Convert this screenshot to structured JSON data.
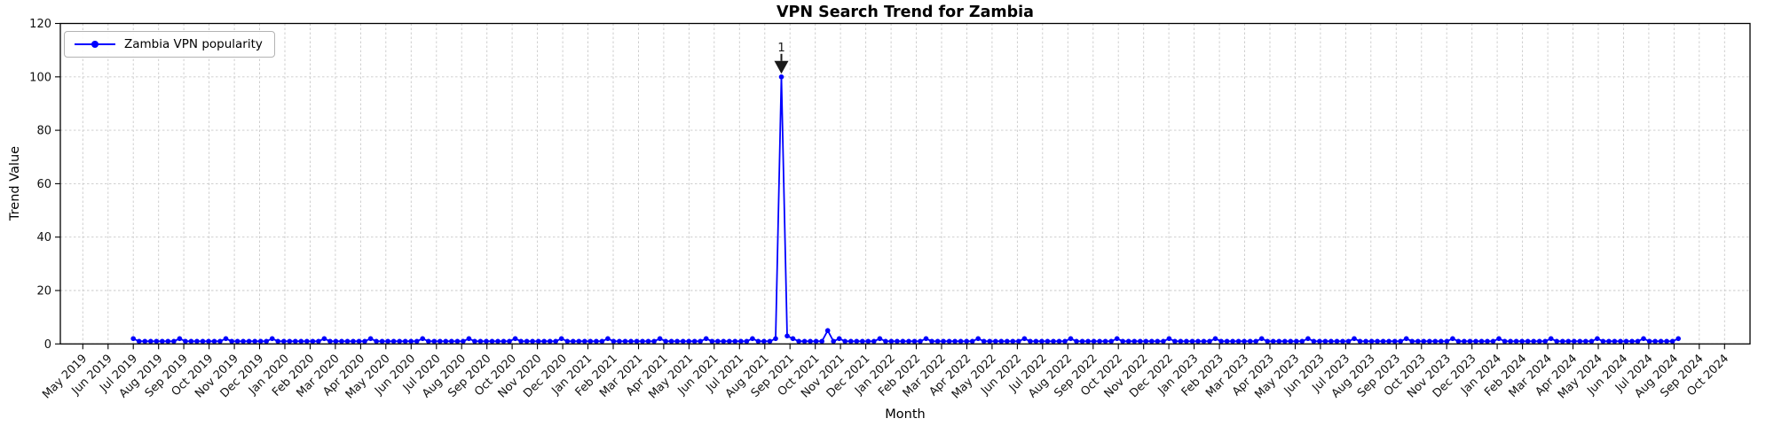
{
  "chart_data": {
    "type": "line",
    "title": "VPN Search Trend for Zambia",
    "xlabel": "Month",
    "ylabel": "Trend Value",
    "ylim": [
      0,
      120
    ],
    "yticks": [
      0,
      20,
      40,
      60,
      80,
      100,
      120
    ],
    "grid": "dashed",
    "legend_position": "upper left",
    "x_tick_labels": [
      "May 2019",
      "Jun 2019",
      "Jul 2019",
      "Aug 2019",
      "Sep 2019",
      "Oct 2019",
      "Nov 2019",
      "Dec 2019",
      "Jan 2020",
      "Feb 2020",
      "Mar 2020",
      "Apr 2020",
      "May 2020",
      "Jun 2020",
      "Jul 2020",
      "Aug 2020",
      "Sep 2020",
      "Oct 2020",
      "Nov 2020",
      "Dec 2020",
      "Jan 2021",
      "Feb 2021",
      "Mar 2021",
      "Apr 2021",
      "May 2021",
      "Jun 2021",
      "Jul 2021",
      "Aug 2021",
      "Sep 2021",
      "Oct 2021",
      "Nov 2021",
      "Dec 2021",
      "Jan 2022",
      "Feb 2022",
      "Mar 2022",
      "Apr 2022",
      "May 2022",
      "Jun 2022",
      "Jul 2022",
      "Aug 2022",
      "Sep 2022",
      "Oct 2022",
      "Nov 2022",
      "Dec 2022",
      "Jan 2023",
      "Feb 2023",
      "Mar 2023",
      "Apr 2023",
      "May 2023",
      "Jun 2023",
      "Jul 2023",
      "Aug 2023",
      "Sep 2023",
      "Oct 2023",
      "Nov 2023",
      "Dec 2023",
      "Jan 2024",
      "Feb 2024",
      "Mar 2024",
      "Apr 2024",
      "May 2024",
      "Jun 2024",
      "Jul 2024",
      "Aug 2024",
      "Sep 2024",
      "Oct 2024"
    ],
    "series": [
      {
        "name": "Zambia VPN popularity",
        "color": "#0000ff",
        "marker": "circle",
        "cadence": "weekly",
        "first_point_month_index": 2,
        "points_per_month": 4.365,
        "values": [
          2,
          1,
          1,
          1,
          1,
          1,
          1,
          1,
          2,
          1,
          1,
          1,
          1,
          1,
          1,
          1,
          2,
          1,
          1,
          1,
          1,
          1,
          1,
          1,
          2,
          1,
          1,
          1,
          1,
          1,
          1,
          1,
          1,
          2,
          1,
          1,
          1,
          1,
          1,
          1,
          1,
          2,
          1,
          1,
          1,
          1,
          1,
          1,
          1,
          1,
          2,
          1,
          1,
          1,
          1,
          1,
          1,
          1,
          2,
          1,
          1,
          1,
          1,
          1,
          1,
          1,
          2,
          1,
          1,
          1,
          1,
          1,
          1,
          1,
          2,
          1,
          1,
          1,
          1,
          1,
          1,
          1,
          2,
          1,
          1,
          1,
          1,
          1,
          1,
          1,
          1,
          2,
          1,
          1,
          1,
          1,
          1,
          1,
          1,
          2,
          1,
          1,
          1,
          1,
          1,
          1,
          1,
          2,
          1,
          1,
          1,
          2,
          100,
          3,
          2,
          1,
          1,
          1,
          1,
          1,
          5,
          1,
          2,
          1,
          1,
          1,
          1,
          1,
          1,
          2,
          1,
          1,
          1,
          1,
          1,
          1,
          1,
          2,
          1,
          1,
          1,
          1,
          1,
          1,
          1,
          1,
          2,
          1,
          1,
          1,
          1,
          1,
          1,
          1,
          2,
          1,
          1,
          1,
          1,
          1,
          1,
          1,
          2,
          1,
          1,
          1,
          1,
          1,
          1,
          1,
          2,
          1,
          1,
          1,
          1,
          1,
          1,
          1,
          1,
          2,
          1,
          1,
          1,
          1,
          1,
          1,
          1,
          2,
          1,
          1,
          1,
          1,
          1,
          1,
          1,
          2,
          1,
          1,
          1,
          1,
          1,
          1,
          1,
          2,
          1,
          1,
          1,
          1,
          1,
          1,
          1,
          2,
          1,
          1,
          1,
          1,
          1,
          1,
          1,
          1,
          2,
          1,
          1,
          1,
          1,
          1,
          1,
          1,
          2,
          1,
          1,
          1,
          1,
          1,
          1,
          1,
          2,
          1,
          1,
          1,
          1,
          1,
          1,
          1,
          1,
          2,
          1,
          1,
          1,
          1,
          1,
          1,
          1,
          2,
          1,
          1,
          1,
          1,
          1,
          1,
          1,
          2,
          1,
          1,
          1,
          1,
          1,
          2
        ]
      }
    ],
    "annotations": [
      {
        "text": "1",
        "series": 0,
        "point_index": 112,
        "value": 100,
        "arrow": "down",
        "color": "#1a1a1a"
      }
    ]
  }
}
